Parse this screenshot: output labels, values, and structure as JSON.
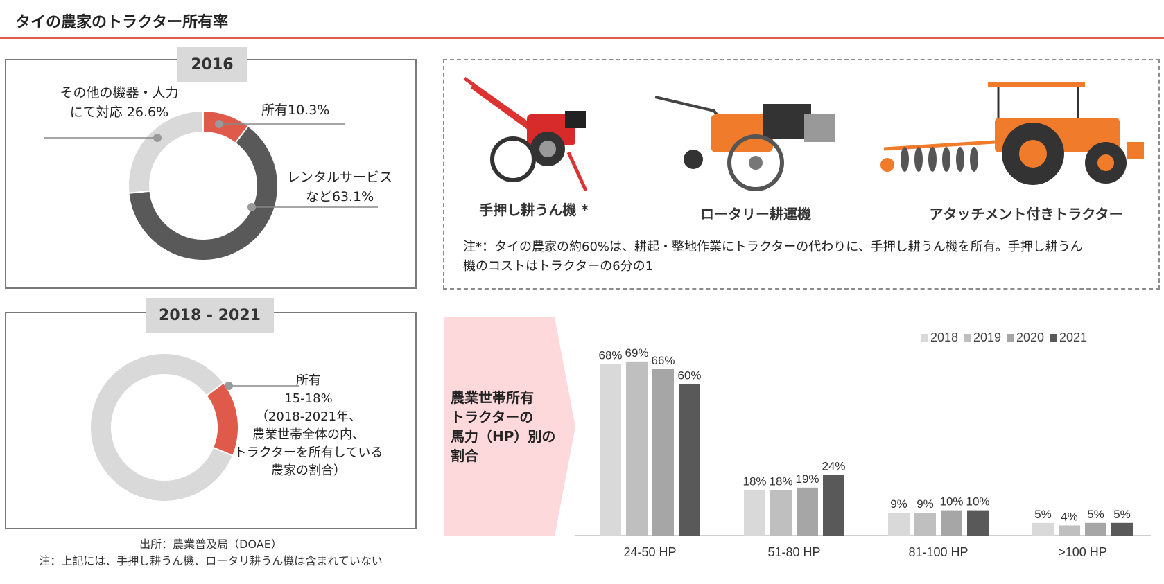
{
  "header": {
    "title": "タイの農家のトラクター所有率"
  },
  "panel_2016": {
    "tab": "2016",
    "label_other": [
      "その他の機器・人力",
      "にて対応 26.6%"
    ],
    "label_own": "所有10.3%",
    "label_rental": [
      "レンタルサービス",
      "など63.1%"
    ]
  },
  "panel_2018": {
    "tab": "2018 - 2021",
    "label_own": [
      "所有",
      "15-18%",
      "（2018-2021年、",
      "農業世帯全体の内、",
      "トラクターを所有している",
      "農家の割合）"
    ]
  },
  "machines": {
    "captions": [
      "手押し耕うん機 *",
      "ロータリー耕運機",
      "アタッチメント付きトラクター"
    ],
    "note": [
      "注*：タイの農家の約60%は、耕起・整地作業にトラクターの代わりに、手押し耕うん機を所有。手押し耕うん",
      "機のコストはトラクターの6分の1"
    ]
  },
  "banner": {
    "text": [
      "農業世帯所有",
      "トラクターの",
      "馬力（HP）別の",
      "割合"
    ]
  },
  "footer": {
    "source": "出所：農業普及局（DOAE）",
    "note": "注：上記には、手押し耕うん機、ロータリ耕うん機は含まれていない"
  },
  "colors": {
    "accent_red": "#e05a4b",
    "dark_gray": "#595959",
    "light_gray": "#d9d9d9",
    "banner_pink": "#fdd9dc"
  },
  "chart_data": [
    {
      "type": "pie",
      "variant": "donut",
      "title": "2016",
      "slices": [
        {
          "label": "所有",
          "value": 10.3,
          "color": "#e05a4b"
        },
        {
          "label": "レンタルサービスなど",
          "value": 63.1,
          "color": "#595959"
        },
        {
          "label": "その他の機器・人力にて対応",
          "value": 26.6,
          "color": "#d9d9d9"
        }
      ]
    },
    {
      "type": "pie",
      "variant": "donut",
      "title": "2018 - 2021",
      "slices": [
        {
          "label": "所有",
          "value": 16.5,
          "color": "#e05a4b"
        },
        {
          "label": "",
          "value": 83.5,
          "color": "#d9d9d9"
        }
      ]
    },
    {
      "type": "bar",
      "categories": [
        "24-50 HP",
        "51-80 HP",
        "81-100 HP",
        ">100 HP"
      ],
      "series": [
        {
          "name": "2018",
          "values": [
            68,
            18,
            9,
            5
          ],
          "labels": [
            "68%",
            "18%",
            "9%",
            "5%"
          ],
          "color": "#d9d9d9"
        },
        {
          "name": "2019",
          "values": [
            69,
            18,
            9,
            4
          ],
          "labels": [
            "69%",
            "18%",
            "9%",
            "4%"
          ],
          "color": "#bfbfbf"
        },
        {
          "name": "2020",
          "values": [
            66,
            19,
            10,
            5
          ],
          "labels": [
            "66%",
            "19%",
            "10%",
            "5%"
          ],
          "color": "#a6a6a6"
        },
        {
          "name": "2021",
          "values": [
            60,
            24,
            10,
            5
          ],
          "labels": [
            "60%",
            "24%",
            "10%",
            "5%"
          ],
          "color": "#595959"
        }
      ],
      "ylim": [
        0,
        75
      ],
      "legend": "top-right",
      "grid": false
    }
  ]
}
